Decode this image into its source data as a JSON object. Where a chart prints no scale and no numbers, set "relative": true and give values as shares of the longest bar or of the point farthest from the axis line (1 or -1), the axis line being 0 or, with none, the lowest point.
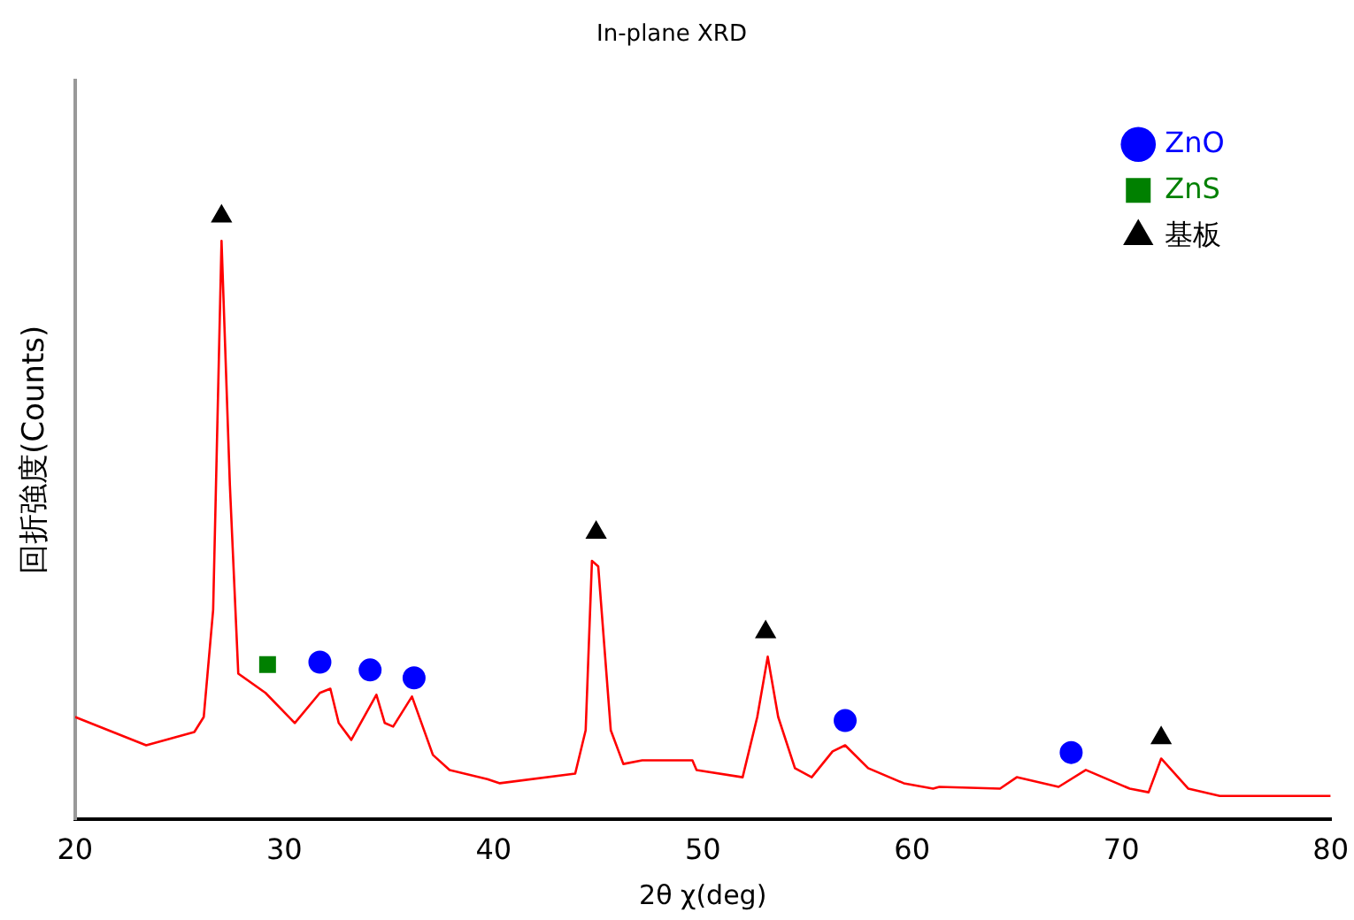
{
  "chart_data": {
    "type": "line",
    "title": "In-plane XRD",
    "xlabel": "2θ χ(deg)",
    "ylabel": "回折強度(Counts)",
    "relative": true,
    "xlim": [
      20,
      80
    ],
    "xticks": [
      20,
      30,
      40,
      50,
      60,
      70,
      80
    ],
    "grid": false,
    "legend": "top right",
    "series": [
      {
        "type": "line",
        "color": "#ff0000",
        "marker": "none",
        "x": [
          20.0,
          23.4,
          25.7,
          26.15,
          26.6,
          27.0,
          27.4,
          27.8,
          29.1,
          30.5,
          31.7,
          32.2,
          32.6,
          33.2,
          34.4,
          34.8,
          35.2,
          36.1,
          37.1,
          37.9,
          39.7,
          40.3,
          43.9,
          44.4,
          44.7,
          45.0,
          45.6,
          46.2,
          47.1,
          49.5,
          49.7,
          51.9,
          52.6,
          53.1,
          53.6,
          54.4,
          55.2,
          56.2,
          56.8,
          57.9,
          59.6,
          61.0,
          61.3,
          64.2,
          65.0,
          67.0,
          68.3,
          70.4,
          71.3,
          71.9,
          73.2,
          74.7,
          80.0
        ],
        "values": [
          0.169,
          0.122,
          0.144,
          0.169,
          0.347,
          0.959,
          0.553,
          0.241,
          0.209,
          0.159,
          0.209,
          0.216,
          0.159,
          0.131,
          0.206,
          0.159,
          0.153,
          0.203,
          0.106,
          0.081,
          0.066,
          0.059,
          0.075,
          0.147,
          0.428,
          0.419,
          0.147,
          0.091,
          0.097,
          0.097,
          0.081,
          0.069,
          0.169,
          0.269,
          0.169,
          0.084,
          0.069,
          0.112,
          0.122,
          0.084,
          0.059,
          0.05,
          0.053,
          0.05,
          0.069,
          0.053,
          0.081,
          0.05,
          0.044,
          0.1,
          0.05,
          0.038,
          0.038
        ]
      },
      {
        "type": "scatter",
        "name": "ZnO",
        "color": "#0000ff",
        "marker": "circle",
        "x": [
          31.7,
          34.1,
          36.2,
          56.8,
          67.6
        ],
        "values": [
          0.26,
          0.247,
          0.234,
          0.163,
          0.11
        ]
      },
      {
        "type": "scatter",
        "name": "ZnS",
        "color": "#008000",
        "marker": "square",
        "x": [
          29.2
        ],
        "values": [
          0.256
        ]
      },
      {
        "type": "scatter",
        "name": "基板",
        "color": "#000000",
        "marker": "triangle",
        "x": [
          27.0,
          44.9,
          53.0,
          71.9
        ],
        "values": [
          1.0,
          0.475,
          0.31,
          0.134
        ]
      }
    ]
  }
}
